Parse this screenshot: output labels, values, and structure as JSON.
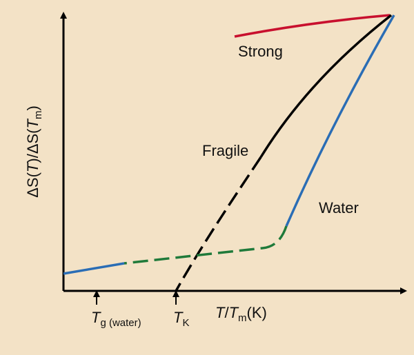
{
  "labels": {
    "strong": "Strong",
    "fragile": "Fragile",
    "water": "Water"
  },
  "y_axis": {
    "parts": [
      "ΔS(",
      "T",
      ")/ΔS(",
      "T",
      "m",
      ")"
    ]
  },
  "x_axis": {
    "parts": [
      "T",
      "/",
      "T",
      "m",
      "(K)"
    ]
  },
  "markers": [
    {
      "parts": [
        "T",
        "g (water)"
      ]
    },
    {
      "parts": [
        "T",
        "K"
      ]
    }
  ]
}
